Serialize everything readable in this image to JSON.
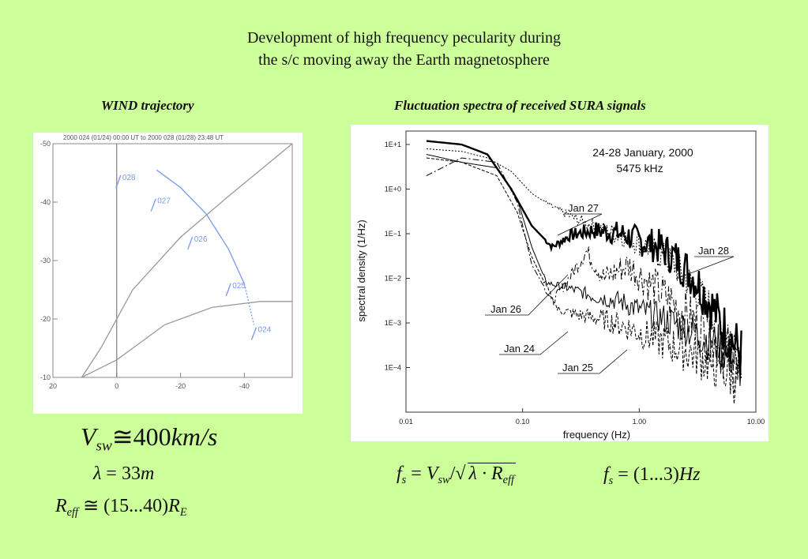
{
  "title": {
    "line1": "Development of high frequency pecularity during",
    "line2": "the s/c moving away the Earth magnetosphere"
  },
  "left_subtitle": "WIND trajectory",
  "right_subtitle": "Fluctuation spectra of received SURA signals",
  "colors": {
    "background": "#ccff99",
    "trajectory": "#7799ee",
    "boundary": "#999999"
  },
  "formulas": {
    "vsw": {
      "sym": "V",
      "sub": "sw",
      "rel": "≅",
      "val": "400",
      "unit": "km/s"
    },
    "lambda": {
      "sym": "λ",
      "rel": " = ",
      "val": "33",
      "unit": "m"
    },
    "reff": {
      "sym": "R",
      "sub": "eff",
      "rel": " ≅ ",
      "val": "(15...40)",
      "unit": "R",
      "unit_sub": "E"
    },
    "fs1": {
      "lhs": "f",
      "lhs_sub": "s",
      "eq": " = ",
      "v": "V",
      "v_sub": "sw",
      "div": "/",
      "lam": "λ · ",
      "r": "R",
      "r_sub": "eff"
    },
    "fs2": {
      "lhs": "f",
      "lhs_sub": "s",
      "eq": " = ",
      "val": "(1...3)",
      "unit": "Hz"
    }
  },
  "chart_data": [
    {
      "type": "line",
      "header": "2000 024 (01/24) 00:00 UT to 2000 028 (01/28) 23:48 UT",
      "xlim": [
        20,
        -55
      ],
      "ylim": [
        -10,
        -50
      ],
      "x_ticks": [
        "20",
        "0",
        "-20",
        "-40"
      ],
      "y_ticks": [
        "-50",
        "-40",
        "-30",
        "-20",
        "-10"
      ],
      "series": [
        {
          "name": "trajectory",
          "x": [
            -12.5,
            -20,
            -28,
            -35,
            -40,
            -43
          ],
          "y": [
            -45.5,
            -42.5,
            -38,
            -32,
            -26,
            -19
          ],
          "markers": [
            {
              "label": "028",
              "x": -0.5,
              "y": -43.5
            },
            {
              "label": "027",
              "x": -11.5,
              "y": -39.5
            },
            {
              "label": "026",
              "x": -23,
              "y": -33
            },
            {
              "label": "025",
              "x": -35,
              "y": -25
            },
            {
              "label": "024",
              "x": -43,
              "y": -17.5
            }
          ]
        },
        {
          "name": "boundary-1",
          "x": [
            11,
            5,
            -5,
            -20,
            -35,
            -55
          ],
          "y": [
            -10,
            -15,
            -25,
            -34,
            -41,
            -50
          ]
        },
        {
          "name": "boundary-2",
          "x": [
            11,
            0,
            -15,
            -30,
            -45,
            -55
          ],
          "y": [
            -10,
            -13,
            -19,
            -22,
            -23,
            -23
          ]
        }
      ]
    },
    {
      "type": "line",
      "log_x": true,
      "log_y": true,
      "xlabel": "frequency (Hz)",
      "ylabel": "spectral density (1/Hz)",
      "xlim": [
        0.01,
        10
      ],
      "ylim": [
        1e-05,
        20
      ],
      "x_ticks": [
        "0.01",
        "0.10",
        "1.00",
        "10.00"
      ],
      "y_ticks": [
        "1E+1",
        "1E+0",
        "1E−1",
        "1E−2",
        "1E−3",
        "1E−4"
      ],
      "annotations": [
        "24-28 January, 2000",
        "5475 kHz"
      ],
      "series": [
        {
          "name": "Jan 28",
          "x": [
            0.015,
            0.03,
            0.05,
            0.08,
            0.12,
            0.18,
            0.25,
            0.4,
            0.7,
            1.0,
            1.5,
            2.0,
            3.0,
            4.0,
            5.0,
            7.5
          ],
          "y": [
            12,
            10,
            6,
            1.0,
            0.15,
            0.05,
            0.09,
            0.12,
            0.1,
            0.07,
            0.05,
            0.03,
            0.01,
            0.003,
            0.001,
            0.0002
          ]
        },
        {
          "name": "Jan 27",
          "x": [
            0.015,
            0.03,
            0.05,
            0.08,
            0.12,
            0.18,
            0.3,
            0.5,
            0.8,
            1.2,
            2.0,
            3.0,
            5.0,
            7.5
          ],
          "y": [
            8,
            7,
            5,
            2.5,
            0.8,
            0.4,
            0.2,
            0.12,
            0.08,
            0.05,
            0.02,
            0.006,
            0.001,
            0.0002
          ]
        },
        {
          "name": "Jan 26",
          "x": [
            0.015,
            0.03,
            0.06,
            0.09,
            0.12,
            0.18,
            0.25,
            0.35,
            0.5,
            0.8,
            1.5,
            3.0,
            5.0,
            7.5
          ],
          "y": [
            2,
            5,
            4,
            0.5,
            0.02,
            0.003,
            0.01,
            0.04,
            0.01,
            0.02,
            0.005,
            0.001,
            0.0003,
            0.0001
          ]
        },
        {
          "name": "Jan 24",
          "x": [
            0.015,
            0.03,
            0.06,
            0.09,
            0.12,
            0.16,
            0.25,
            0.4,
            0.7,
            1.0,
            2.0,
            3.0,
            5.0,
            7.5
          ],
          "y": [
            6,
            4,
            3,
            0.6,
            0.05,
            0.008,
            0.006,
            0.004,
            0.003,
            0.002,
            0.001,
            0.0006,
            0.0003,
            0.0001
          ]
        },
        {
          "name": "Jan 25",
          "x": [
            0.015,
            0.03,
            0.06,
            0.09,
            0.12,
            0.2,
            0.3,
            0.5,
            0.8,
            1.2,
            2.0,
            3.0,
            5.0,
            7.5
          ],
          "y": [
            5,
            4,
            2,
            0.3,
            0.03,
            0.002,
            0.0015,
            0.0012,
            0.0008,
            0.0005,
            0.0003,
            0.0002,
            0.0001,
            5e-05
          ]
        }
      ]
    }
  ]
}
